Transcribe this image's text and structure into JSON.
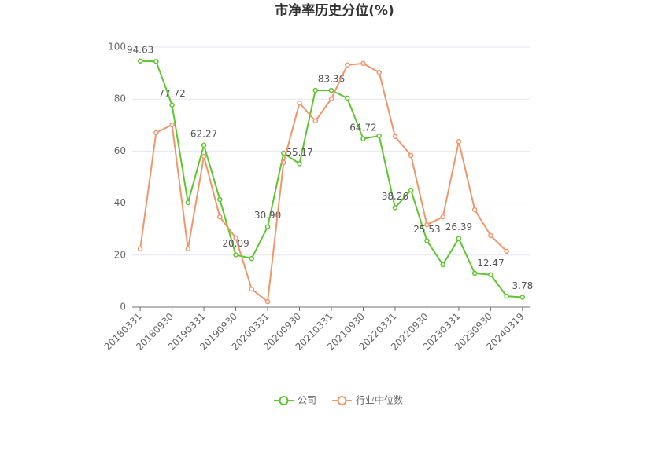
{
  "chart_data": {
    "type": "line",
    "title": "市净率历史分位(%)",
    "categories": [
      "20180331",
      null,
      "20180930",
      null,
      "20190331",
      null,
      "20190930",
      null,
      "20200331",
      null,
      "20200930",
      null,
      "20210331",
      null,
      "20210930",
      null,
      "20220331",
      null,
      "20220930",
      null,
      "20230331",
      null,
      "20230930",
      null,
      "20240319"
    ],
    "series": [
      {
        "name": "公司",
        "color": "#5ec62f",
        "values": [
          94.63,
          94.5,
          77.72,
          40.2,
          62.27,
          41.4,
          20.09,
          18.7,
          30.9,
          59.2,
          55.17,
          83.4,
          83.36,
          80.4,
          64.72,
          65.9,
          38.26,
          45.0,
          25.53,
          16.3,
          26.39,
          13.0,
          12.47,
          4.2,
          3.78
        ],
        "value_labels": [
          "94.63",
          null,
          "77.72",
          null,
          "62.27",
          null,
          "20.09",
          null,
          "30.90",
          null,
          "55.17",
          null,
          "83.36",
          null,
          "64.72",
          null,
          "38.26",
          null,
          "25.53",
          null,
          "26.39",
          null,
          "12.47",
          null,
          "3.78"
        ]
      },
      {
        "name": "行业中位数",
        "color": "#f2956b",
        "values": [
          22.4,
          67.1,
          70.1,
          22.4,
          58.0,
          34.7,
          26.6,
          6.9,
          2.1,
          55.6,
          78.5,
          71.6,
          80.1,
          93.1,
          93.7,
          90.3,
          65.6,
          58.3,
          31.7,
          34.7,
          63.7,
          37.5,
          27.5,
          21.5,
          null
        ]
      }
    ],
    "ylim": [
      0,
      100
    ],
    "yticks": [
      0,
      20,
      40,
      60,
      80,
      100
    ],
    "grid": true,
    "legend": "bottom"
  }
}
